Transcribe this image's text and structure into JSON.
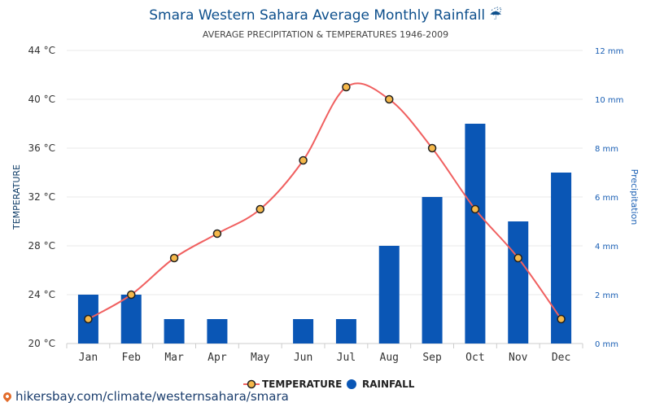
{
  "chart_data": {
    "type": "bar",
    "title": "Smara Western Sahara Average Monthly Rainfall",
    "title_icon": "umbrella-rain-icon",
    "subtitle": "AVERAGE PRECIPITATION & TEMPERATURES 1946-2009",
    "categories": [
      "Jan",
      "Feb",
      "Mar",
      "Apr",
      "May",
      "Jun",
      "Jul",
      "Aug",
      "Sep",
      "Oct",
      "Nov",
      "Dec"
    ],
    "y_left": {
      "label": "TEMPERATURE",
      "ticks": [
        "20 °C",
        "24 °C",
        "28 °C",
        "32 °C",
        "36 °C",
        "40 °C",
        "44 °C"
      ],
      "range": [
        20,
        44
      ]
    },
    "y_right": {
      "label": "Precipitation",
      "ticks": [
        "0 mm",
        "2 mm",
        "4 mm",
        "6 mm",
        "8 mm",
        "10 mm",
        "12 mm"
      ],
      "range": [
        0,
        12
      ]
    },
    "series": [
      {
        "name": "TEMPERATURE",
        "type": "line",
        "axis": "left",
        "color": "#f06060",
        "marker_fill": "#f5b84a",
        "values": [
          22,
          24,
          27,
          29,
          31,
          35,
          41,
          40,
          36,
          31,
          27,
          22
        ]
      },
      {
        "name": "RAINFALL",
        "type": "bar",
        "axis": "right",
        "color": "#0a56b5",
        "values": [
          2,
          2,
          1,
          1,
          0,
          1,
          1,
          4,
          6,
          9,
          5,
          7
        ]
      }
    ],
    "grid": true,
    "legend_position": "bottom-center"
  },
  "source": {
    "icon": "map-pin-icon",
    "text": "hikersbay.com/climate/westernsahara/smara"
  }
}
